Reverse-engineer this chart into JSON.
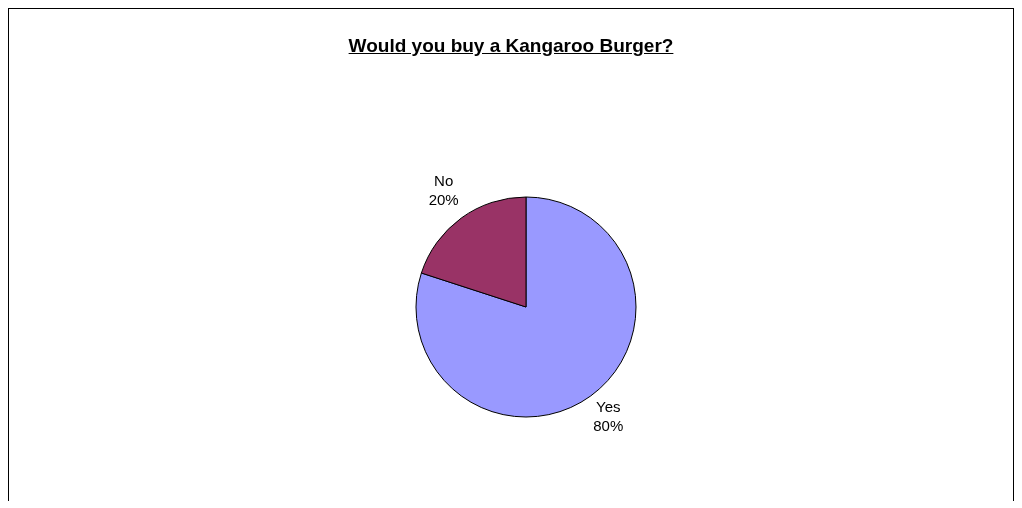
{
  "chart_data": {
    "type": "pie",
    "title": "Would you buy a Kangaroo Burger?",
    "categories": [
      "Yes",
      "No"
    ],
    "values": [
      80,
      20
    ],
    "colors": [
      "#9999ff",
      "#993366"
    ],
    "value_labels": [
      "80%",
      "20%"
    ],
    "legend": false
  }
}
